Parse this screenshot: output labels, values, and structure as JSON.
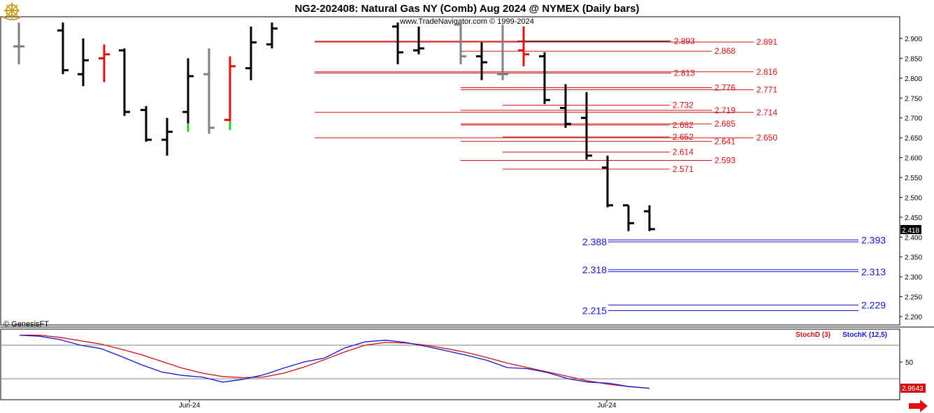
{
  "header": {
    "title": "NG2-202408:  Natural Gas NY (Comb) Aug 2024 @ NYMEX  (Daily bars)",
    "copyright": "www.TradeNavigator.com © 1999-2024",
    "watermark": "© GenesisFT",
    "logo_icon": "ship-wheel-icon"
  },
  "colors": {
    "bar_black": "#000000",
    "bar_gray": "#808080",
    "bar_red": "#e01010",
    "bar_green": "#20d020",
    "resistance_red": "#d01010",
    "support_blue": "#1414d0",
    "stoch_d": "#d01010",
    "stoch_k": "#1414d0",
    "arrow": "#e01010"
  },
  "chart_data": [
    {
      "type": "ohlc",
      "name": "price",
      "ylim": [
        2.18,
        2.93
      ],
      "y_ticks": [
        "2.900",
        "2.850",
        "2.800",
        "2.750",
        "2.700",
        "2.650",
        "2.600",
        "2.550",
        "2.500",
        "2.450",
        "2.400",
        "2.350",
        "2.300",
        "2.250",
        "2.200"
      ],
      "x_labels": [
        "Jun-24",
        "Jul-24"
      ],
      "last_price_label": "2.418",
      "bars": [
        {
          "o": 2.88,
          "h": 2.94,
          "l": 2.835,
          "c": 2.88,
          "color": "gray"
        },
        {
          "o": 2.92,
          "h": 2.94,
          "l": 2.81,
          "c": 2.82,
          "color": "black"
        },
        {
          "o": 2.81,
          "h": 2.9,
          "l": 2.78,
          "c": 2.845,
          "color": "black"
        },
        {
          "o": 2.85,
          "h": 2.885,
          "l": 2.79,
          "c": 2.86,
          "color": "red"
        },
        {
          "o": 2.87,
          "h": 2.875,
          "l": 2.705,
          "c": 2.715,
          "color": "black"
        },
        {
          "o": 2.72,
          "h": 2.73,
          "l": 2.64,
          "c": 2.645,
          "color": "black"
        },
        {
          "o": 2.645,
          "h": 2.7,
          "l": 2.605,
          "c": 2.665,
          "color": "black"
        },
        {
          "o": 2.715,
          "h": 2.85,
          "l": 2.665,
          "c": 2.805,
          "color": "black",
          "low_color": "green"
        },
        {
          "o": 2.81,
          "h": 2.875,
          "l": 2.66,
          "c": 2.675,
          "color": "gray"
        },
        {
          "o": 2.695,
          "h": 2.855,
          "l": 2.67,
          "c": 2.83,
          "color": "red",
          "low_color": "green"
        },
        {
          "o": 2.825,
          "h": 2.93,
          "l": 2.795,
          "c": 2.89,
          "color": "black"
        },
        {
          "o": 2.885,
          "h": 2.94,
          "l": 2.875,
          "c": 2.925,
          "color": "black"
        },
        {
          "o": 2.93,
          "h": 2.94,
          "l": 2.835,
          "c": 2.865,
          "color": "black"
        },
        {
          "o": 2.87,
          "h": 2.93,
          "l": 2.86,
          "c": 2.875,
          "color": "black"
        },
        {
          "o": 2.935,
          "h": 2.94,
          "l": 2.835,
          "c": 2.855,
          "color": "gray"
        },
        {
          "o": 2.855,
          "h": 2.89,
          "l": 2.795,
          "c": 2.84,
          "color": "black"
        },
        {
          "o": 2.81,
          "h": 2.935,
          "l": 2.795,
          "c": 2.81,
          "color": "gray"
        },
        {
          "o": 2.87,
          "h": 2.93,
          "l": 2.83,
          "c": 2.86,
          "color": "red"
        },
        {
          "o": 2.855,
          "h": 2.865,
          "l": 2.735,
          "c": 2.745,
          "color": "black"
        },
        {
          "o": 2.725,
          "h": 2.785,
          "l": 2.675,
          "c": 2.685,
          "color": "black"
        },
        {
          "o": 2.7,
          "h": 2.765,
          "l": 2.595,
          "c": 2.605,
          "color": "black"
        },
        {
          "o": 2.575,
          "h": 2.605,
          "l": 2.475,
          "c": 2.48,
          "color": "black"
        },
        {
          "o": 2.48,
          "h": 2.48,
          "l": 2.415,
          "c": 2.435,
          "color": "black"
        },
        {
          "o": 2.465,
          "h": 2.48,
          "l": 2.415,
          "c": 2.42,
          "color": "black"
        }
      ],
      "resistance_levels": [
        "2.893",
        "2.891",
        "2.868",
        "2.813",
        "2.816",
        "2.776",
        "2.771",
        "2.732",
        "2.719",
        "2.714",
        "2.682",
        "2.685",
        "2.652",
        "2.641",
        "2.650",
        "2.614",
        "2.593",
        "2.571"
      ],
      "support_levels": [
        "2.388",
        "2.393",
        "2.318",
        "2.313",
        "2.215",
        "2.229"
      ]
    },
    {
      "type": "line",
      "name": "stochastic",
      "ylim": [
        0,
        100
      ],
      "y_ticks": [
        "50"
      ],
      "reference_lines": [
        80,
        20
      ],
      "last_value_label": "2.9643",
      "series": [
        {
          "name": "StochD (3)",
          "values": [
            98,
            98,
            94,
            88,
            82,
            73,
            63,
            51,
            39,
            30,
            24,
            22,
            23,
            30,
            41,
            54,
            68,
            80,
            85,
            84,
            80,
            74,
            67,
            58,
            48,
            40,
            32,
            24,
            16,
            10,
            6,
            3
          ]
        },
        {
          "name": "StochK (12,5)",
          "values": [
            98,
            96,
            90,
            80,
            74,
            60,
            45,
            32,
            26,
            23,
            14,
            19,
            27,
            39,
            50,
            57,
            75,
            86,
            89,
            85,
            78,
            70,
            62,
            53,
            40,
            38,
            31,
            20,
            14,
            12,
            6,
            3
          ]
        }
      ]
    }
  ]
}
